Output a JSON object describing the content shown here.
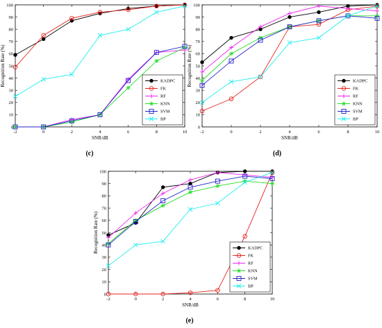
{
  "figure": {
    "style": {
      "series_colors": {
        "KADPC": "#000000",
        "FK": "#e8231f",
        "RF": "#ee22ee",
        "KNN": "#22dd22",
        "SVM": "#2222cc",
        "BP": "#22eeee"
      }
    },
    "panels": [
      {
        "label": "(c)"
      },
      {
        "label": "(d)"
      },
      {
        "label": "(e)"
      }
    ]
  },
  "chart_data": [
    {
      "type": "line",
      "title": "",
      "xlabel": "SNR/dB",
      "ylabel": "Recognition Rate (%)",
      "x": [
        -2,
        0,
        2,
        4,
        6,
        8,
        10
      ],
      "xlim": [
        -2,
        10
      ],
      "ylim": [
        0,
        100
      ],
      "xticks": [
        "-2",
        "0",
        "2",
        "4",
        "6",
        "8",
        "10"
      ],
      "yticks": [
        "0",
        "10",
        "20",
        "30",
        "40",
        "50",
        "60",
        "70",
        "80",
        "90",
        "100"
      ],
      "grid": false,
      "legend": "bottom-right",
      "series": [
        {
          "name": "KADPC",
          "marker": "dot",
          "values": [
            59,
            72,
            87,
            93,
            97,
            99,
            100
          ]
        },
        {
          "name": "FK",
          "marker": "circle",
          "values": [
            49,
            75,
            89,
            94,
            96,
            99,
            100
          ]
        },
        {
          "name": "RF",
          "marker": "cross",
          "values": [
            0,
            0,
            6,
            10,
            39,
            61,
            63
          ]
        },
        {
          "name": "KNN",
          "marker": "star",
          "values": [
            0,
            0,
            4,
            10,
            32,
            54,
            65
          ]
        },
        {
          "name": "SVM",
          "marker": "square",
          "values": [
            0,
            0,
            5,
            10,
            38,
            61,
            66
          ]
        },
        {
          "name": "BP",
          "marker": "xmark",
          "values": [
            25,
            39,
            43,
            75,
            80,
            94,
            99
          ]
        }
      ]
    },
    {
      "type": "line",
      "title": "",
      "xlabel": "SNR/dB",
      "ylabel": "Recognition Rate (%)",
      "x": [
        -2,
        0,
        2,
        4,
        6,
        8,
        10
      ],
      "xlim": [
        -2,
        10
      ],
      "ylim": [
        0,
        100
      ],
      "xticks": [
        "-2",
        "0",
        "2",
        "4",
        "6",
        "8",
        "10"
      ],
      "yticks": [
        "0",
        "10",
        "20",
        "30",
        "40",
        "50",
        "60",
        "70",
        "80",
        "90",
        "100"
      ],
      "grid": false,
      "legend": "bottom-right",
      "series": [
        {
          "name": "KADPC",
          "marker": "dot",
          "values": [
            53,
            73,
            80,
            90,
            94,
            99,
            100
          ]
        },
        {
          "name": "FK",
          "marker": "circle",
          "values": [
            13,
            23,
            41,
            82,
            84,
            96,
            99
          ]
        },
        {
          "name": "RF",
          "marker": "cross",
          "values": [
            45,
            65,
            82,
            93,
            99,
            97,
            95
          ]
        },
        {
          "name": "KNN",
          "marker": "star",
          "values": [
            38,
            60,
            73,
            82,
            87,
            91,
            91
          ]
        },
        {
          "name": "SVM",
          "marker": "square",
          "values": [
            34,
            54,
            71,
            82,
            87,
            91,
            89
          ]
        },
        {
          "name": "BP",
          "marker": "xmark",
          "values": [
            20,
            37,
            41,
            69,
            73,
            91,
            99
          ]
        }
      ]
    },
    {
      "type": "line",
      "title": "",
      "xlabel": "SNR/dB",
      "ylabel": "Recognition Rate (%)",
      "x": [
        -2,
        0,
        2,
        4,
        6,
        8,
        10
      ],
      "xlim": [
        -2,
        10
      ],
      "ylim": [
        0,
        100
      ],
      "xticks": [
        "-2",
        "0",
        "2",
        "4",
        "6",
        "8",
        "10"
      ],
      "yticks": [
        "0",
        "10",
        "20",
        "30",
        "40",
        "50",
        "60",
        "70",
        "80",
        "90",
        "100"
      ],
      "grid": false,
      "legend": "bottom-right",
      "series": [
        {
          "name": "KADPC",
          "marker": "dot",
          "values": [
            48,
            58,
            87,
            90,
            99,
            100,
            100
          ]
        },
        {
          "name": "FK",
          "marker": "circle",
          "values": [
            0,
            0,
            0,
            1,
            3,
            47,
            99
          ]
        },
        {
          "name": "RF",
          "marker": "cross",
          "values": [
            46,
            66,
            82,
            93,
            99,
            97,
            95
          ]
        },
        {
          "name": "KNN",
          "marker": "star",
          "values": [
            41,
            60,
            72,
            83,
            88,
            92,
            90
          ]
        },
        {
          "name": "SVM",
          "marker": "square",
          "values": [
            40,
            59,
            76,
            87,
            92,
            96,
            94
          ]
        },
        {
          "name": "BP",
          "marker": "xmark",
          "values": [
            23,
            40,
            43,
            69,
            74,
            91,
            99
          ]
        }
      ]
    }
  ]
}
